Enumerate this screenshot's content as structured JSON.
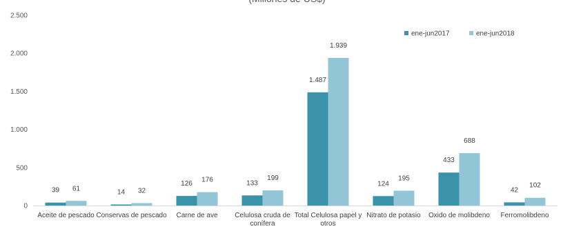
{
  "chart_data": {
    "type": "bar",
    "subtitle": "(Millones de US$)",
    "categories": [
      "Aceite de pescado",
      "Conservas de pescado",
      "Carne de ave",
      "Celulosa cruda de conífera",
      "Total Celulosa papel y otros",
      "Nitrato de potasio",
      "Oxido de molibdeno",
      "Ferromolibdeno"
    ],
    "category_display": [
      [
        "Aceite de pescado"
      ],
      [
        "Conservas de pescado"
      ],
      [
        "Carne de ave"
      ],
      [
        "Celulosa cruda de",
        "conífera"
      ],
      [
        "Total Celulosa papel y",
        "otros"
      ],
      [
        "Nitrato de potasio"
      ],
      [
        "Oxido de molibdeno"
      ],
      [
        "Ferromolibdeno"
      ]
    ],
    "series": [
      {
        "name": "ene-jun2017",
        "color": "#3A93A8",
        "values": [
          39,
          14,
          126,
          133,
          1487,
          124,
          433,
          42
        ],
        "labels": [
          "39",
          "14",
          "126",
          "133",
          "1.487",
          "124",
          "433",
          "42"
        ]
      },
      {
        "name": "ene-jun2018",
        "color": "#92C5D6",
        "values": [
          61,
          32,
          176,
          199,
          1939,
          195,
          688,
          102
        ],
        "labels": [
          "61",
          "32",
          "176",
          "199",
          "1.939",
          "195",
          "688",
          "102"
        ]
      }
    ],
    "ylim": [
      0,
      2500
    ],
    "yticks": [
      0,
      500,
      1000,
      1500,
      2000,
      2500
    ],
    "ytick_labels": [
      "0",
      "500",
      "1.000",
      "1.500",
      "2.000",
      "2.500"
    ],
    "grid": false,
    "legend_position": "top-right"
  }
}
